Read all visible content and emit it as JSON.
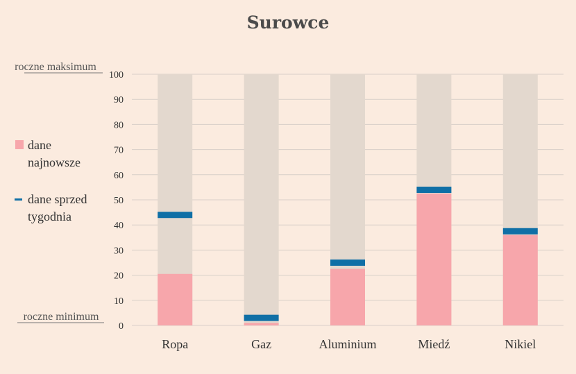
{
  "chart_data": {
    "type": "bar",
    "title": "Surowce",
    "categories": [
      "Ropa",
      "Gaz",
      "Aluminium",
      "Miedź",
      "Nikiel"
    ],
    "series": [
      {
        "name": "dane najnowsze",
        "values": [
          20.5,
          1,
          22.5,
          52.5,
          36
        ]
      },
      {
        "name": "dane sprzed tygodnia",
        "values": [
          44,
          3,
          25,
          54,
          37.5
        ]
      }
    ],
    "range_max": 100,
    "ylim": [
      0,
      100
    ],
    "yticks": [
      0,
      10,
      20,
      30,
      40,
      50,
      60,
      70,
      80,
      90,
      100
    ],
    "annotations": {
      "top": "roczne maksimum",
      "bottom": "roczne minimum"
    },
    "legend": {
      "latest_lines": [
        "dane",
        "najnowsze"
      ],
      "previous_lines": [
        "dane sprzed",
        "tygodnia"
      ],
      "position": "left"
    },
    "grid": true,
    "colors": {
      "background": "#fbebdf",
      "range": "#e3d8ce",
      "latest": "#f7a6ab",
      "previous": "#0f6fa6",
      "grid": "#d8cfc8"
    }
  }
}
